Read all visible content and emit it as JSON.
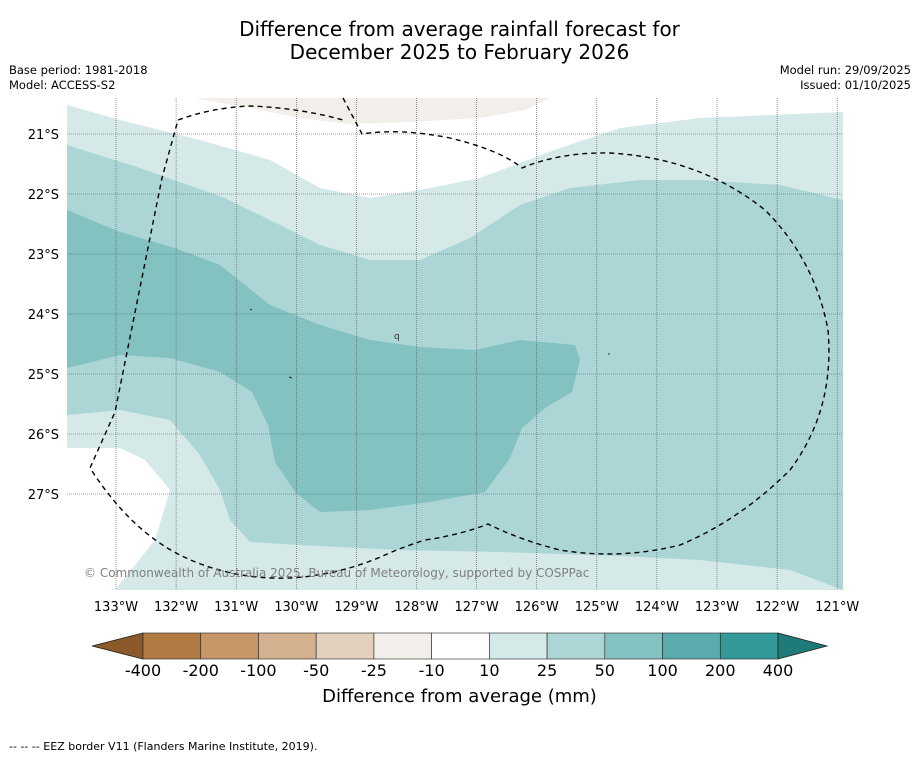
{
  "title": {
    "line1": "Difference from average rainfall forecast for",
    "line2": "December 2025 to February 2026"
  },
  "meta_left": {
    "base_period": "Base period: 1981-2018",
    "model": "Model: ACCESS-S2"
  },
  "meta_right": {
    "model_run": "Model run: 29/09/2025",
    "issued": "Issued: 01/10/2025"
  },
  "map": {
    "lat_labels": [
      "21°S",
      "22°S",
      "23°S",
      "24°S",
      "25°S",
      "26°S",
      "27°S"
    ],
    "lon_labels": [
      "133°W",
      "132°W",
      "131°W",
      "130°W",
      "129°W",
      "128°W",
      "127°W",
      "126°W",
      "125°W",
      "124°W",
      "123°W",
      "122°W",
      "121°W"
    ],
    "copyright": "© Commonwealth of Australia 2025, Bureau of Meteorology, supported by COSPPac",
    "contour_label": "q"
  },
  "colorbar": {
    "title": "Difference from average (mm)",
    "tick_labels": [
      "-400",
      "-200",
      "-100",
      "-50",
      "-25",
      "-10",
      "10",
      "25",
      "50",
      "100",
      "200",
      "400"
    ],
    "colors": {
      "below_400": "#8c5a2a",
      "n400_n200": "#b07a42",
      "n200_n100": "#c49668",
      "n100_n50": "#d3b08e",
      "n50_n25": "#e3d0bd",
      "n25_n10": "#f2eeea",
      "n10_10": "#ffffff",
      "p10_25": "#d5e9e9",
      "p25_50": "#acd5d5",
      "p50_100": "#84c1c1",
      "p100_200": "#5aacac",
      "p200_400": "#339999",
      "above_400": "#1f7a7a"
    }
  },
  "footer": {
    "legend_line": "--  --  -- EEZ border V11 (Flanders Marine Institute, 2019)."
  }
}
